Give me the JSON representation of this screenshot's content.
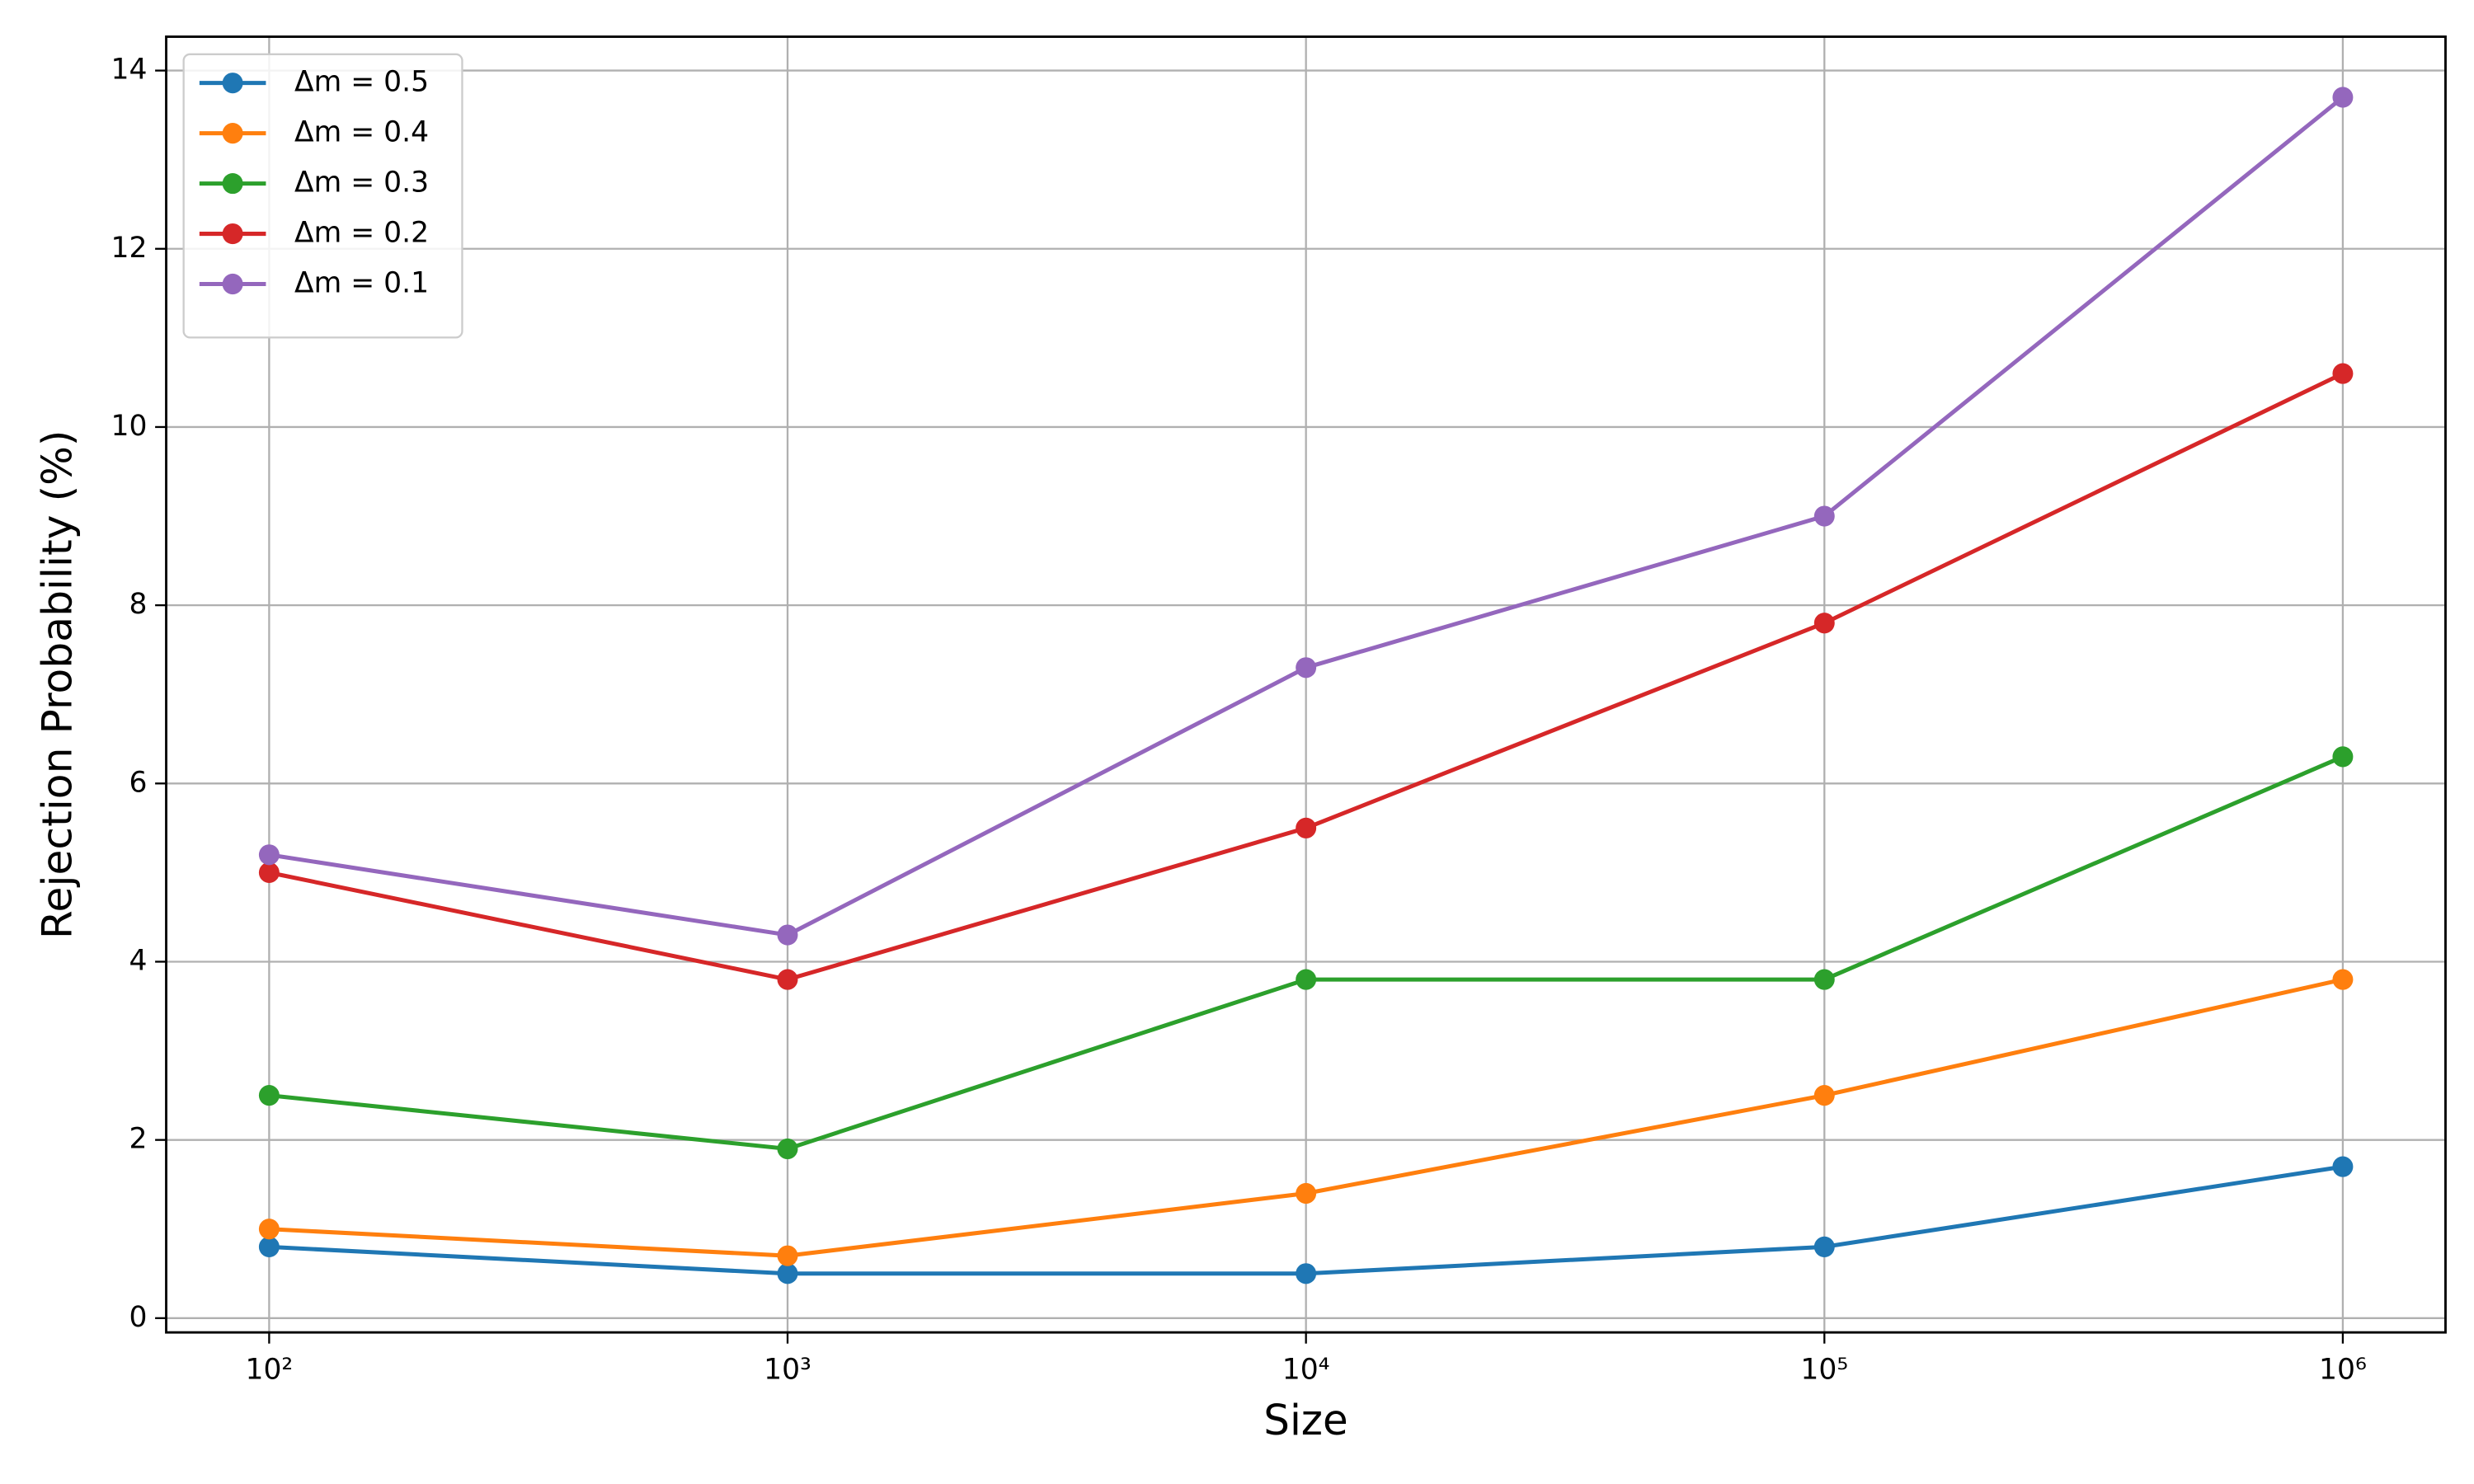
{
  "chart_data": {
    "type": "line",
    "x_label": "Size",
    "y_label": "Rejection Probability (%)",
    "x": [
      100,
      1000,
      10000,
      100000,
      1000000
    ],
    "series": [
      {
        "name": "Δm = 0.5",
        "color": "#1f77b4",
        "values": [
          0.8,
          0.5,
          0.5,
          0.8,
          1.7
        ]
      },
      {
        "name": "Δm = 0.4",
        "color": "#ff7f0e",
        "values": [
          1.0,
          0.7,
          1.4,
          2.5,
          3.8
        ]
      },
      {
        "name": "Δm = 0.3",
        "color": "#2ca02c",
        "values": [
          2.5,
          1.9,
          3.8,
          3.8,
          6.3
        ]
      },
      {
        "name": "Δm = 0.2",
        "color": "#d62728",
        "values": [
          5.0,
          3.8,
          5.5,
          7.8,
          10.6
        ]
      },
      {
        "name": "Δm = 0.1",
        "color": "#9467bd",
        "values": [
          5.2,
          4.3,
          7.3,
          9.0,
          13.7
        ]
      }
    ],
    "xlim": [
      63.3,
      1578000
    ],
    "ylim": [
      -0.16,
      14.38
    ],
    "xticks": [
      {
        "value": 100,
        "label": "10²"
      },
      {
        "value": 1000,
        "label": "10³"
      },
      {
        "value": 10000,
        "label": "10⁴"
      },
      {
        "value": 100000,
        "label": "10⁵"
      },
      {
        "value": 1000000,
        "label": "10⁶"
      }
    ],
    "yticks": [
      0,
      2,
      4,
      6,
      8,
      10,
      12,
      14
    ],
    "x_log": true,
    "grid": true,
    "legend": "upper left"
  }
}
